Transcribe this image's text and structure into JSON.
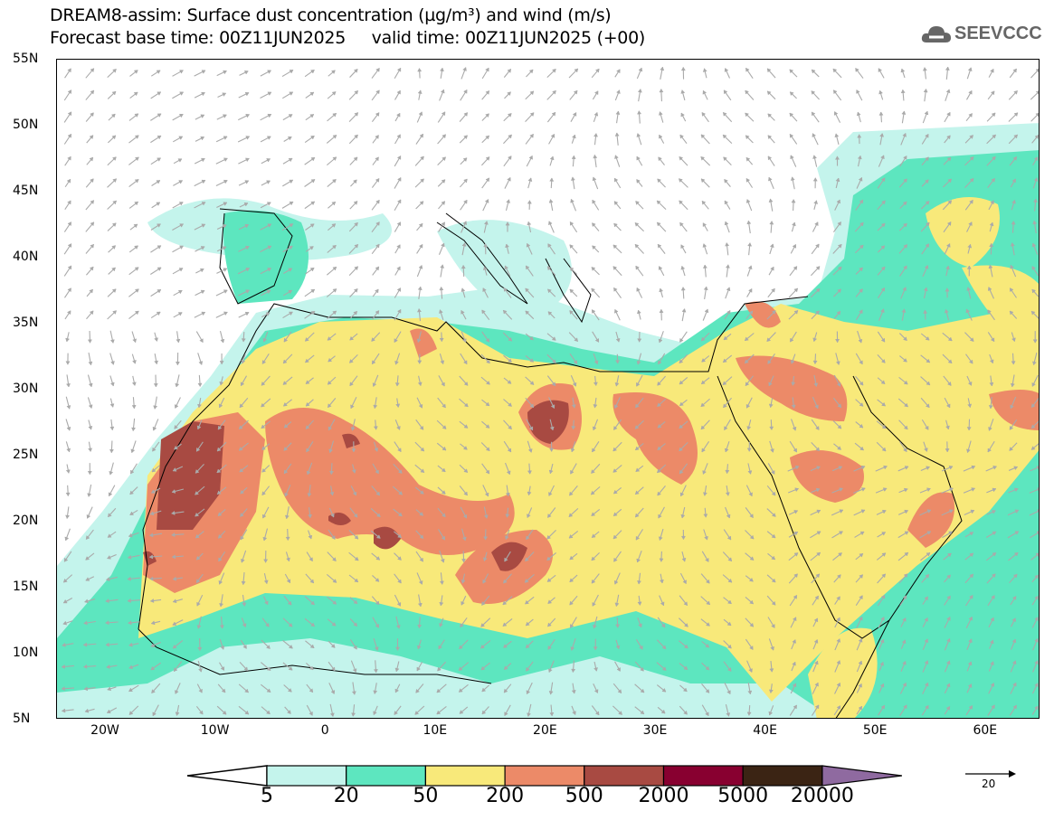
{
  "header": {
    "title_line1": "DREAM8-assim: Surface dust concentration (µg/m³) and wind (m/s)",
    "title_line2": "Forecast base time: 00Z11JUN2025     valid time: 00Z11JUN2025 (+00)",
    "logo_text": "SEEVCCC"
  },
  "map": {
    "lat_ticks": [
      "55N",
      "50N",
      "45N",
      "40N",
      "35N",
      "30N",
      "25N",
      "20N",
      "15N",
      "10N",
      "5N"
    ],
    "lon_ticks": [
      "20W",
      "10W",
      "0",
      "10E",
      "20E",
      "30E",
      "40E",
      "50E",
      "60E"
    ],
    "extent_deg": {
      "lon": [
        -25,
        65
      ],
      "lat": [
        5,
        55
      ]
    }
  },
  "colorbar": {
    "labels": [
      "5",
      "20",
      "50",
      "200",
      "500",
      "2000",
      "5000",
      "20000"
    ],
    "colors": [
      "#ffffff",
      "#c4f4ec",
      "#5de6bf",
      "#f8e97a",
      "#ec8a68",
      "#a84a42",
      "#880030",
      "#3b2414",
      "#8f6aa0"
    ]
  },
  "wind_reference": {
    "label": "20",
    "arrow_color": "#aaaaaa"
  }
}
